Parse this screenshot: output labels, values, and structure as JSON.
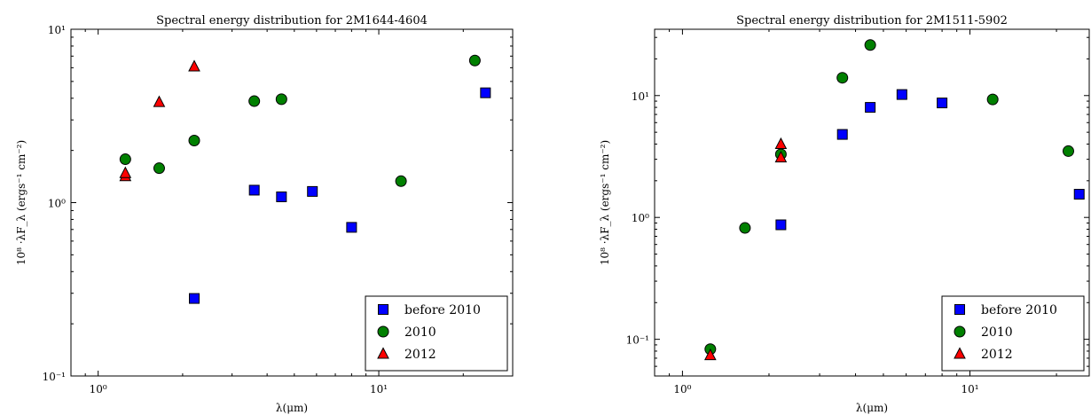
{
  "chart_data": [
    {
      "type": "scatter",
      "title": "Spectral energy distribution for 2M1644-4604",
      "xlabel": "λ(μm)",
      "ylabel": "10⁸ ·λF_λ (ergs⁻¹ cm⁻²)",
      "xscale": "log",
      "yscale": "log",
      "xlim": [
        0.8,
        30
      ],
      "ylim": [
        0.1,
        10
      ],
      "x_ticks": [
        {
          "value": 1,
          "label": "10⁰"
        },
        {
          "value": 10,
          "label": "10¹"
        }
      ],
      "y_ticks": [
        {
          "value": 0.1,
          "label": "10⁻¹"
        },
        {
          "value": 1,
          "label": "10⁰"
        },
        {
          "value": 10,
          "label": "10¹"
        }
      ],
      "legend_position": "bottom-right",
      "series": [
        {
          "name": "before 2010",
          "marker": "square",
          "color": "#0000ff",
          "points": [
            [
              2.2,
              0.28
            ],
            [
              3.6,
              1.18
            ],
            [
              4.5,
              1.08
            ],
            [
              5.8,
              1.16
            ],
            [
              8.0,
              0.72
            ],
            [
              24.0,
              4.3
            ]
          ]
        },
        {
          "name": "2010",
          "marker": "circle",
          "color": "#008000",
          "points": [
            [
              1.25,
              1.78
            ],
            [
              1.65,
              1.58
            ],
            [
              2.2,
              2.28
            ],
            [
              3.6,
              3.85
            ],
            [
              4.5,
              3.95
            ],
            [
              12.0,
              1.33
            ],
            [
              22.0,
              6.6
            ]
          ]
        },
        {
          "name": "2012",
          "marker": "triangle",
          "color": "#ff0000",
          "points": [
            [
              1.25,
              1.42
            ],
            [
              1.25,
              1.48
            ],
            [
              1.65,
              3.8
            ],
            [
              2.2,
              6.1
            ]
          ]
        }
      ]
    },
    {
      "type": "scatter",
      "title": "Spectral energy distribution for 2M1511-5902",
      "xlabel": "λ(μm)",
      "ylabel": "10⁸ ·λF_λ (ergs⁻¹ cm⁻²)",
      "xscale": "log",
      "yscale": "log",
      "xlim": [
        0.8,
        26
      ],
      "ylim": [
        0.05,
        35
      ],
      "x_ticks": [
        {
          "value": 1,
          "label": "10⁰"
        },
        {
          "value": 10,
          "label": "10¹"
        }
      ],
      "y_ticks": [
        {
          "value": 0.1,
          "label": "10⁻¹"
        },
        {
          "value": 1,
          "label": "10⁰"
        },
        {
          "value": 10,
          "label": "10¹"
        }
      ],
      "legend_position": "bottom-right",
      "series": [
        {
          "name": "before 2010",
          "marker": "square",
          "color": "#0000ff",
          "points": [
            [
              2.2,
              0.87
            ],
            [
              3.6,
              4.8
            ],
            [
              4.5,
              8.0
            ],
            [
              5.8,
              10.2
            ],
            [
              8.0,
              8.7
            ],
            [
              24.0,
              1.55
            ]
          ]
        },
        {
          "name": "2010",
          "marker": "circle",
          "color": "#008000",
          "points": [
            [
              1.25,
              0.083
            ],
            [
              1.65,
              0.82
            ],
            [
              2.2,
              3.3
            ],
            [
              3.6,
              14.0
            ],
            [
              4.5,
              26.0
            ],
            [
              12.0,
              9.3
            ],
            [
              22.0,
              3.5
            ]
          ]
        },
        {
          "name": "2012",
          "marker": "triangle",
          "color": "#ff0000",
          "points": [
            [
              1.25,
              0.074
            ],
            [
              2.2,
              4.0
            ],
            [
              2.2,
              3.1
            ]
          ]
        }
      ]
    }
  ]
}
